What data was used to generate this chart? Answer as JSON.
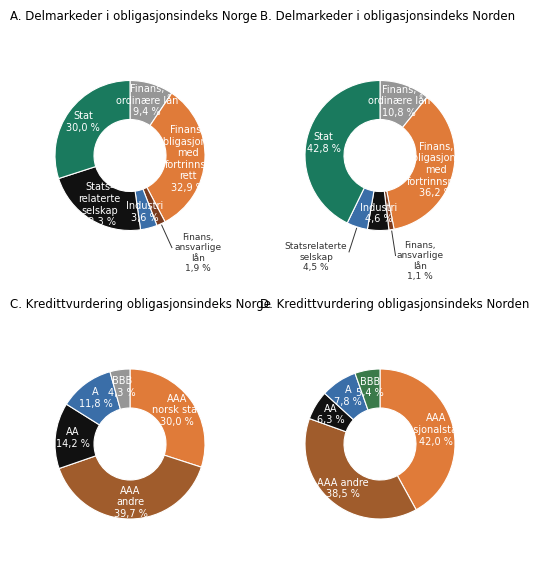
{
  "title_A": "A. Delmarkeder i obligasjonsindeks Norge",
  "title_B": "B. Delmarkeder i obligasjonsindeks Norden",
  "title_C": "C. Kredittvurdering obligasjonsindeks Norge",
  "title_D": "D. Kredittvurdering obligasjonsindeks Norden",
  "chartA_values": [
    9.4,
    32.9,
    1.9,
    3.6,
    22.3,
    30.0
  ],
  "chartA_colors": [
    "#969696",
    "#e07b39",
    "#7a3b1e",
    "#3a6ea8",
    "#111111",
    "#1a7a5e"
  ],
  "chartA_inner_labels": [
    "Finans,\nordinære lån\n9,4 %",
    "Finans,\nobligasjoner\nmed\nfortrinns-\nrett\n32,9 %",
    null,
    "Industri\n3,6 %",
    "Stats-\nrelaterte\nselskap\n22,3 %",
    "Stat\n30,0 %"
  ],
  "chartA_outer_labels": [
    null,
    null,
    "Finans,\nansvarlige\nlån\n1,9 %",
    null,
    null,
    null
  ],
  "chartB_values": [
    10.8,
    36.2,
    1.1,
    4.6,
    4.5,
    42.8
  ],
  "chartB_colors": [
    "#969696",
    "#e07b39",
    "#7a3b1e",
    "#111111",
    "#3a6ea8",
    "#1a7a5e"
  ],
  "chartB_inner_labels": [
    "Finans,\nordinære lån\n10,8 %",
    "Finans,\nobligasjoner\nmed\nfortrinnsrett\n36,2 %",
    null,
    "Industri\n4,6 %",
    null,
    "Stat\n42,8 %"
  ],
  "chartB_outer_labels": [
    null,
    null,
    "Finans,\nansvarlige\nlån\n1,1 %",
    null,
    "Statsrelaterte\nselskap\n4,5 %",
    null
  ],
  "chartC_values": [
    30.0,
    39.7,
    14.2,
    11.8,
    4.3
  ],
  "chartC_colors": [
    "#e07b39",
    "#a05c2c",
    "#111111",
    "#3a6ea8",
    "#969696"
  ],
  "chartC_inner_labels": [
    "AAA\nnorsk stat\n30,0 %",
    "AAA\nandre\n39,7 %",
    "AA\n14,2 %",
    "A\n11,8 %",
    "BBB\n4,3 %"
  ],
  "chartD_values": [
    42.0,
    38.5,
    6.3,
    7.8,
    5.4
  ],
  "chartD_colors": [
    "#e07b39",
    "#a05c2c",
    "#111111",
    "#3a6ea8",
    "#3a7a4a"
  ],
  "chartD_inner_labels": [
    "AAA\nnasjonalstater\n42,0 %",
    "AAA andre\n38,5 %",
    "AA\n6,3 %",
    "A\n7,8 %",
    "BBB\n5,4 %"
  ],
  "background_color": "#ffffff",
  "title_fontsize": 8.5,
  "label_fontsize": 7.0,
  "outer_label_fontsize": 6.5
}
